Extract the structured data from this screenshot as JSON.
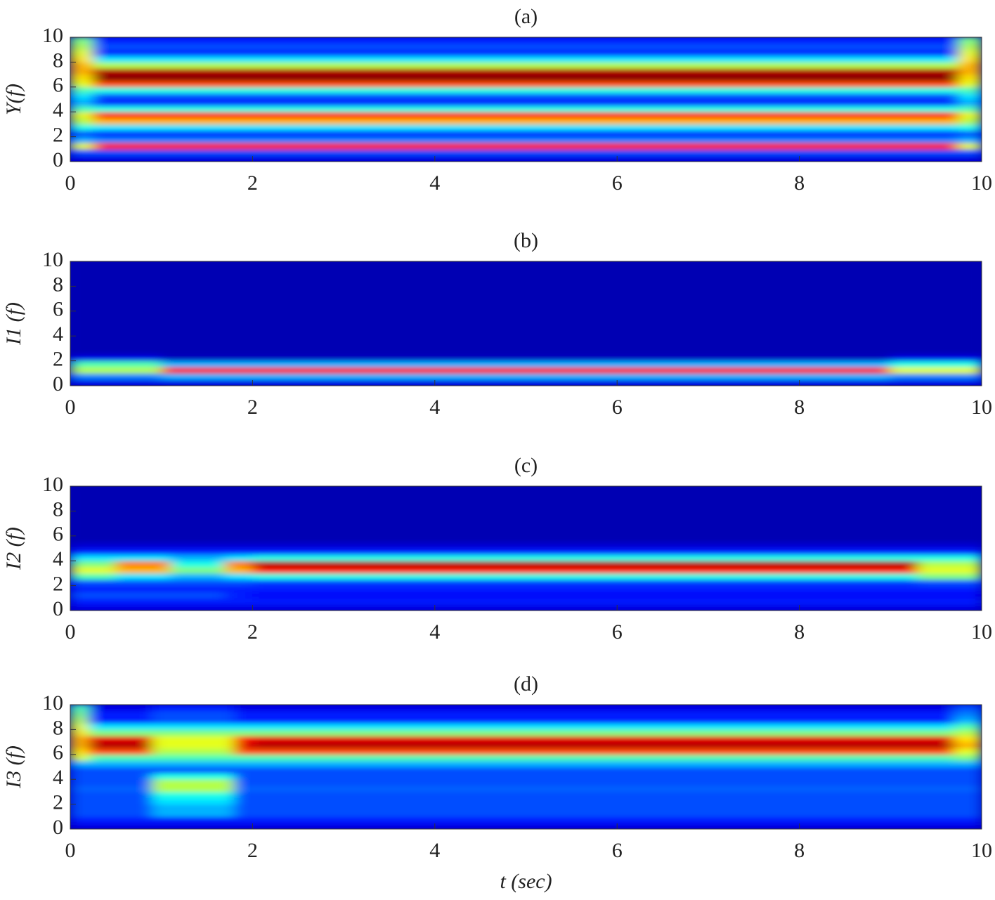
{
  "chart_data": [
    {
      "type": "heatmap",
      "title": "(a)",
      "ylabel": "Y(f)",
      "xlim": [
        0,
        10
      ],
      "ylim": [
        0,
        10
      ],
      "xticks": [
        0,
        2,
        4,
        6,
        8,
        10
      ],
      "yticks": [
        0,
        2,
        4,
        6,
        8,
        10
      ],
      "xbins": [
        0,
        0.25,
        9.75,
        10
      ],
      "ybins": [
        0,
        0.5,
        1,
        1.5,
        2,
        2.5,
        3,
        3.5,
        4,
        4.5,
        5,
        5.5,
        6,
        6.5,
        7,
        7.5,
        8,
        8.5,
        9,
        9.5,
        10
      ],
      "z": [
        [
          0.1,
          0.1,
          0.1
        ],
        [
          0.2,
          0.2,
          0.2
        ],
        [
          0.6,
          0.85,
          0.6
        ],
        [
          0.3,
          0.25,
          0.3
        ],
        [
          0.2,
          0.15,
          0.2
        ],
        [
          0.4,
          0.35,
          0.4
        ],
        [
          0.55,
          0.7,
          0.55
        ],
        [
          0.6,
          0.85,
          0.6
        ],
        [
          0.45,
          0.4,
          0.45
        ],
        [
          0.3,
          0.15,
          0.3
        ],
        [
          0.35,
          0.2,
          0.35
        ],
        [
          0.45,
          0.4,
          0.45
        ],
        [
          0.6,
          0.8,
          0.6
        ],
        [
          0.65,
          1,
          0.65
        ],
        [
          0.7,
          0.95,
          0.7
        ],
        [
          0.7,
          0.55,
          0.7
        ],
        [
          0.65,
          0.35,
          0.65
        ],
        [
          0.6,
          0.15,
          0.6
        ],
        [
          0.55,
          0.2,
          0.55
        ],
        [
          0.5,
          0.15,
          0.5
        ]
      ]
    },
    {
      "type": "heatmap",
      "title": "(b)",
      "ylabel": "I1 (f)",
      "xlim": [
        0,
        10
      ],
      "ylim": [
        0,
        10
      ],
      "xticks": [
        0,
        2,
        4,
        6,
        8,
        10
      ],
      "yticks": [
        0,
        2,
        4,
        6,
        8,
        10
      ],
      "xbins": [
        0,
        1,
        9,
        10
      ],
      "ybins": [
        0,
        0.5,
        1,
        1.5,
        2,
        2.5,
        3,
        3.5,
        4,
        4.5,
        5,
        5.5,
        6,
        6.5,
        7,
        7.5,
        8,
        8.5,
        9,
        9.5,
        10
      ],
      "z": [
        [
          0.1,
          0.1,
          0.1
        ],
        [
          0.25,
          0.3,
          0.25
        ],
        [
          0.55,
          0.85,
          0.6
        ],
        [
          0.45,
          0.3,
          0.4
        ],
        [
          0.1,
          0.06,
          0.1
        ],
        [
          0.05,
          0.05,
          0.05
        ],
        [
          0.05,
          0.05,
          0.05
        ],
        [
          0.05,
          0.05,
          0.05
        ],
        [
          0.05,
          0.05,
          0.05
        ],
        [
          0.05,
          0.05,
          0.05
        ],
        [
          0.05,
          0.05,
          0.05
        ],
        [
          0.05,
          0.05,
          0.05
        ],
        [
          0.05,
          0.05,
          0.05
        ],
        [
          0.05,
          0.05,
          0.05
        ],
        [
          0.05,
          0.05,
          0.05
        ],
        [
          0.05,
          0.05,
          0.05
        ],
        [
          0.05,
          0.05,
          0.05
        ],
        [
          0.05,
          0.05,
          0.05
        ],
        [
          0.05,
          0.05,
          0.05
        ],
        [
          0.05,
          0.05,
          0.05
        ]
      ]
    },
    {
      "type": "heatmap",
      "title": "(c)",
      "ylabel": "I2 (f)",
      "xlim": [
        0,
        10
      ],
      "ylim": [
        0,
        10
      ],
      "xticks": [
        0,
        2,
        4,
        6,
        8,
        10
      ],
      "yticks": [
        0,
        2,
        4,
        6,
        8,
        10
      ],
      "xbins": [
        0,
        0.5,
        1.1,
        1.7,
        2,
        9.3,
        10
      ],
      "ybins": [
        0,
        0.5,
        1,
        1.5,
        2,
        2.5,
        3,
        3.5,
        4,
        4.5,
        5,
        5.5,
        6,
        6.5,
        7,
        7.5,
        8,
        8.5,
        9,
        9.5,
        10
      ],
      "z": [
        [
          0.1,
          0.1,
          0.1,
          0.1,
          0.1,
          0.1
        ],
        [
          0.15,
          0.15,
          0.15,
          0.15,
          0.15,
          0.15
        ],
        [
          0.2,
          0.2,
          0.2,
          0.15,
          0.12,
          0.12
        ],
        [
          0.15,
          0.15,
          0.15,
          0.15,
          0.15,
          0.15
        ],
        [
          0.2,
          0.2,
          0.2,
          0.2,
          0.18,
          0.2
        ],
        [
          0.45,
          0.35,
          0.3,
          0.35,
          0.4,
          0.5
        ],
        [
          0.6,
          0.7,
          0.5,
          0.7,
          0.85,
          0.6
        ],
        [
          0.5,
          0.75,
          0.4,
          0.75,
          0.95,
          0.55
        ],
        [
          0.35,
          0.35,
          0.3,
          0.35,
          0.4,
          0.4
        ],
        [
          0.15,
          0.15,
          0.15,
          0.15,
          0.15,
          0.15
        ],
        [
          0.08,
          0.08,
          0.08,
          0.08,
          0.08,
          0.08
        ],
        [
          0.05,
          0.05,
          0.05,
          0.05,
          0.05,
          0.05
        ],
        [
          0.05,
          0.05,
          0.05,
          0.05,
          0.05,
          0.05
        ],
        [
          0.05,
          0.05,
          0.05,
          0.05,
          0.05,
          0.05
        ],
        [
          0.05,
          0.05,
          0.05,
          0.05,
          0.05,
          0.05
        ],
        [
          0.05,
          0.05,
          0.05,
          0.05,
          0.05,
          0.05
        ],
        [
          0.05,
          0.05,
          0.05,
          0.05,
          0.05,
          0.05
        ],
        [
          0.05,
          0.05,
          0.05,
          0.05,
          0.05,
          0.05
        ],
        [
          0.05,
          0.05,
          0.05,
          0.05,
          0.05,
          0.05
        ],
        [
          0.05,
          0.05,
          0.05,
          0.05,
          0.05,
          0.05
        ]
      ]
    },
    {
      "type": "heatmap",
      "title": "(d)",
      "ylabel": "I3 (f)",
      "xlabel": "t (sec)",
      "xlim": [
        0,
        10
      ],
      "ylim": [
        0,
        10
      ],
      "xticks": [
        0,
        2,
        4,
        6,
        8,
        10
      ],
      "yticks": [
        0,
        2,
        4,
        6,
        8,
        10
      ],
      "xbins": [
        0,
        0.2,
        0.9,
        1.8,
        2,
        9.7,
        10
      ],
      "ybins": [
        0,
        0.5,
        1,
        1.5,
        2,
        2.5,
        3,
        3.5,
        4,
        4.5,
        5,
        5.5,
        6,
        6.5,
        7,
        7.5,
        8,
        8.5,
        9,
        9.5,
        10
      ],
      "z": [
        [
          0.1,
          0.1,
          0.1,
          0.1,
          0.1,
          0.1
        ],
        [
          0.15,
          0.15,
          0.15,
          0.15,
          0.15,
          0.15
        ],
        [
          0.2,
          0.2,
          0.3,
          0.2,
          0.2,
          0.2
        ],
        [
          0.2,
          0.2,
          0.3,
          0.2,
          0.2,
          0.2
        ],
        [
          0.2,
          0.2,
          0.35,
          0.2,
          0.2,
          0.2
        ],
        [
          0.2,
          0.2,
          0.4,
          0.2,
          0.2,
          0.2
        ],
        [
          0.22,
          0.22,
          0.55,
          0.22,
          0.22,
          0.22
        ],
        [
          0.2,
          0.2,
          0.55,
          0.2,
          0.2,
          0.2
        ],
        [
          0.2,
          0.2,
          0.4,
          0.2,
          0.2,
          0.2
        ],
        [
          0.2,
          0.2,
          0.2,
          0.2,
          0.2,
          0.2
        ],
        [
          0.3,
          0.3,
          0.3,
          0.3,
          0.3,
          0.3
        ],
        [
          0.6,
          0.45,
          0.45,
          0.45,
          0.45,
          0.5
        ],
        [
          0.65,
          0.8,
          0.55,
          0.8,
          0.8,
          0.6
        ],
        [
          0.7,
          0.95,
          0.6,
          0.9,
          0.95,
          0.7
        ],
        [
          0.7,
          0.9,
          0.6,
          0.85,
          0.9,
          0.65
        ],
        [
          0.65,
          0.5,
          0.5,
          0.5,
          0.5,
          0.55
        ],
        [
          0.6,
          0.35,
          0.35,
          0.35,
          0.35,
          0.45
        ],
        [
          0.55,
          0.15,
          0.2,
          0.15,
          0.15,
          0.3
        ],
        [
          0.5,
          0.15,
          0.2,
          0.15,
          0.15,
          0.25
        ],
        [
          0.45,
          0.1,
          0.15,
          0.1,
          0.1,
          0.2
        ]
      ]
    }
  ]
}
